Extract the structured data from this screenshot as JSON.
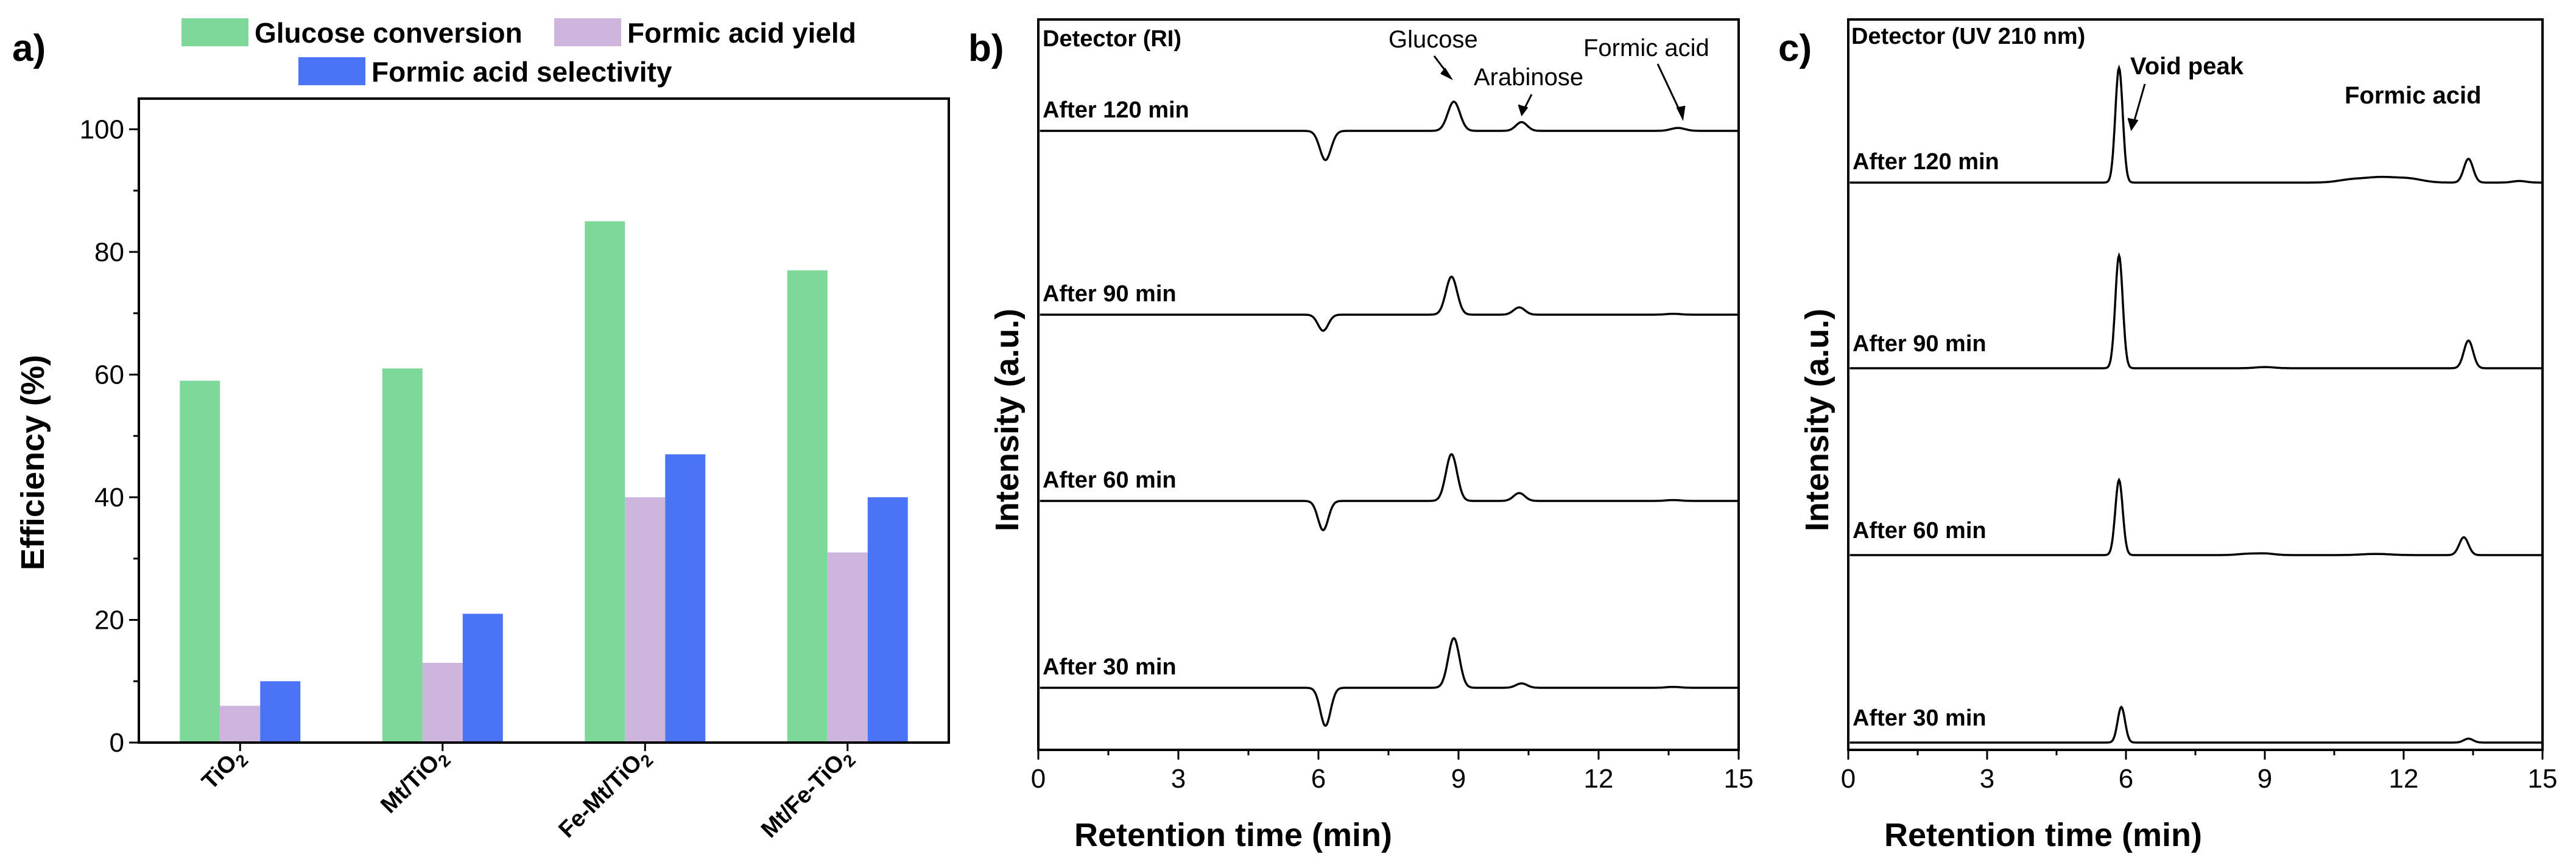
{
  "colors": {
    "glucose_conversion": "#7dd899",
    "formic_acid_yield": "#cdb5dd",
    "formic_acid_selectivity": "#4a73f5",
    "axis": "#000000"
  },
  "chart_data": [
    {
      "panel": "a)",
      "type": "bar",
      "categories": [
        "TiO2",
        "Mt/TiO2",
        "Fe-Mt/TiO2",
        "Mt/Fe-TiO2"
      ],
      "category_labels": [
        {
          "base": "TiO",
          "sub": "2"
        },
        {
          "base": "Mt/TiO",
          "sub": "2"
        },
        {
          "base": "Fe-Mt/TiO",
          "sub": "2"
        },
        {
          "base": "Mt/Fe-TiO",
          "sub": "2"
        }
      ],
      "series": [
        {
          "name": "Glucose conversion",
          "values": [
            59,
            61,
            85,
            77
          ]
        },
        {
          "name": "Formic acid yield",
          "values": [
            6,
            13,
            40,
            31
          ]
        },
        {
          "name": "Formic acid selectivity",
          "values": [
            10,
            21,
            47,
            40
          ]
        }
      ],
      "ylabel": "Efficiency (%)",
      "ylim": [
        0,
        105
      ],
      "yticks": [
        "0",
        "20",
        "40",
        "60",
        "80",
        "100"
      ],
      "legend": "top"
    },
    {
      "panel": "b)",
      "type": "line",
      "detector": "Detector (RI)",
      "xlabel": "Retention time (min)",
      "ylabel": "Intensity (a.u.)",
      "xlim": [
        0,
        15
      ],
      "xticks": [
        "0",
        "3",
        "6",
        "9",
        "12",
        "15"
      ],
      "annotations": [
        "Glucose",
        "Arabinose",
        "Formic acid"
      ],
      "series": [
        {
          "name": "After 120 min",
          "peaks": [
            [
              6.15,
              -1.0,
              0.12
            ],
            [
              8.9,
              1.0,
              0.13
            ],
            [
              10.35,
              0.3,
              0.12
            ],
            [
              13.7,
              0.1,
              0.15
            ]
          ]
        },
        {
          "name": "After 90 min",
          "peaks": [
            [
              6.1,
              -0.55,
              0.11
            ],
            [
              8.85,
              1.3,
              0.12
            ],
            [
              10.3,
              0.25,
              0.12
            ],
            [
              13.6,
              0.03,
              0.15
            ]
          ]
        },
        {
          "name": "After 60 min",
          "peaks": [
            [
              6.1,
              -1.0,
              0.11
            ],
            [
              8.85,
              1.6,
              0.12
            ],
            [
              10.3,
              0.27,
              0.12
            ],
            [
              13.6,
              0.03,
              0.15
            ]
          ]
        },
        {
          "name": "After 30 min",
          "peaks": [
            [
              6.15,
              -1.3,
              0.11
            ],
            [
              8.9,
              1.7,
              0.12
            ],
            [
              10.35,
              0.15,
              0.12
            ],
            [
              13.6,
              0.03,
              0.15
            ]
          ]
        }
      ]
    },
    {
      "panel": "c)",
      "type": "line",
      "detector": "Detector (UV 210 nm)",
      "xlabel": "Retention time (min)",
      "ylabel": "Intensity (a.u.)",
      "xlim": [
        0,
        15
      ],
      "xticks": [
        "0",
        "3",
        "6",
        "9",
        "12",
        "15"
      ],
      "annotations": [
        "Void peak",
        "Formic acid"
      ],
      "series": [
        {
          "name": "After 120 min",
          "peaks": [
            [
              5.85,
              2.9,
              0.08
            ],
            [
              10.9,
              0.08,
              0.3
            ],
            [
              11.5,
              0.12,
              0.3
            ],
            [
              12.1,
              0.1,
              0.3
            ],
            [
              13.4,
              0.6,
              0.1
            ],
            [
              14.5,
              0.04,
              0.15
            ]
          ]
        },
        {
          "name": "After 90 min",
          "peaks": [
            [
              5.85,
              2.85,
              0.08
            ],
            [
              9.0,
              0.03,
              0.2
            ],
            [
              13.4,
              0.7,
              0.1
            ]
          ]
        },
        {
          "name": "After 60 min",
          "peaks": [
            [
              5.85,
              1.9,
              0.08
            ],
            [
              8.6,
              0.03,
              0.2
            ],
            [
              9.0,
              0.04,
              0.2
            ],
            [
              11.4,
              0.03,
              0.3
            ],
            [
              13.3,
              0.45,
              0.1
            ]
          ]
        },
        {
          "name": "After 30 min",
          "peaks": [
            [
              5.9,
              0.9,
              0.08
            ],
            [
              13.4,
              0.1,
              0.1
            ]
          ]
        }
      ]
    }
  ],
  "legend": [
    "Glucose conversion",
    "Formic acid yield",
    "Formic acid selectivity"
  ]
}
